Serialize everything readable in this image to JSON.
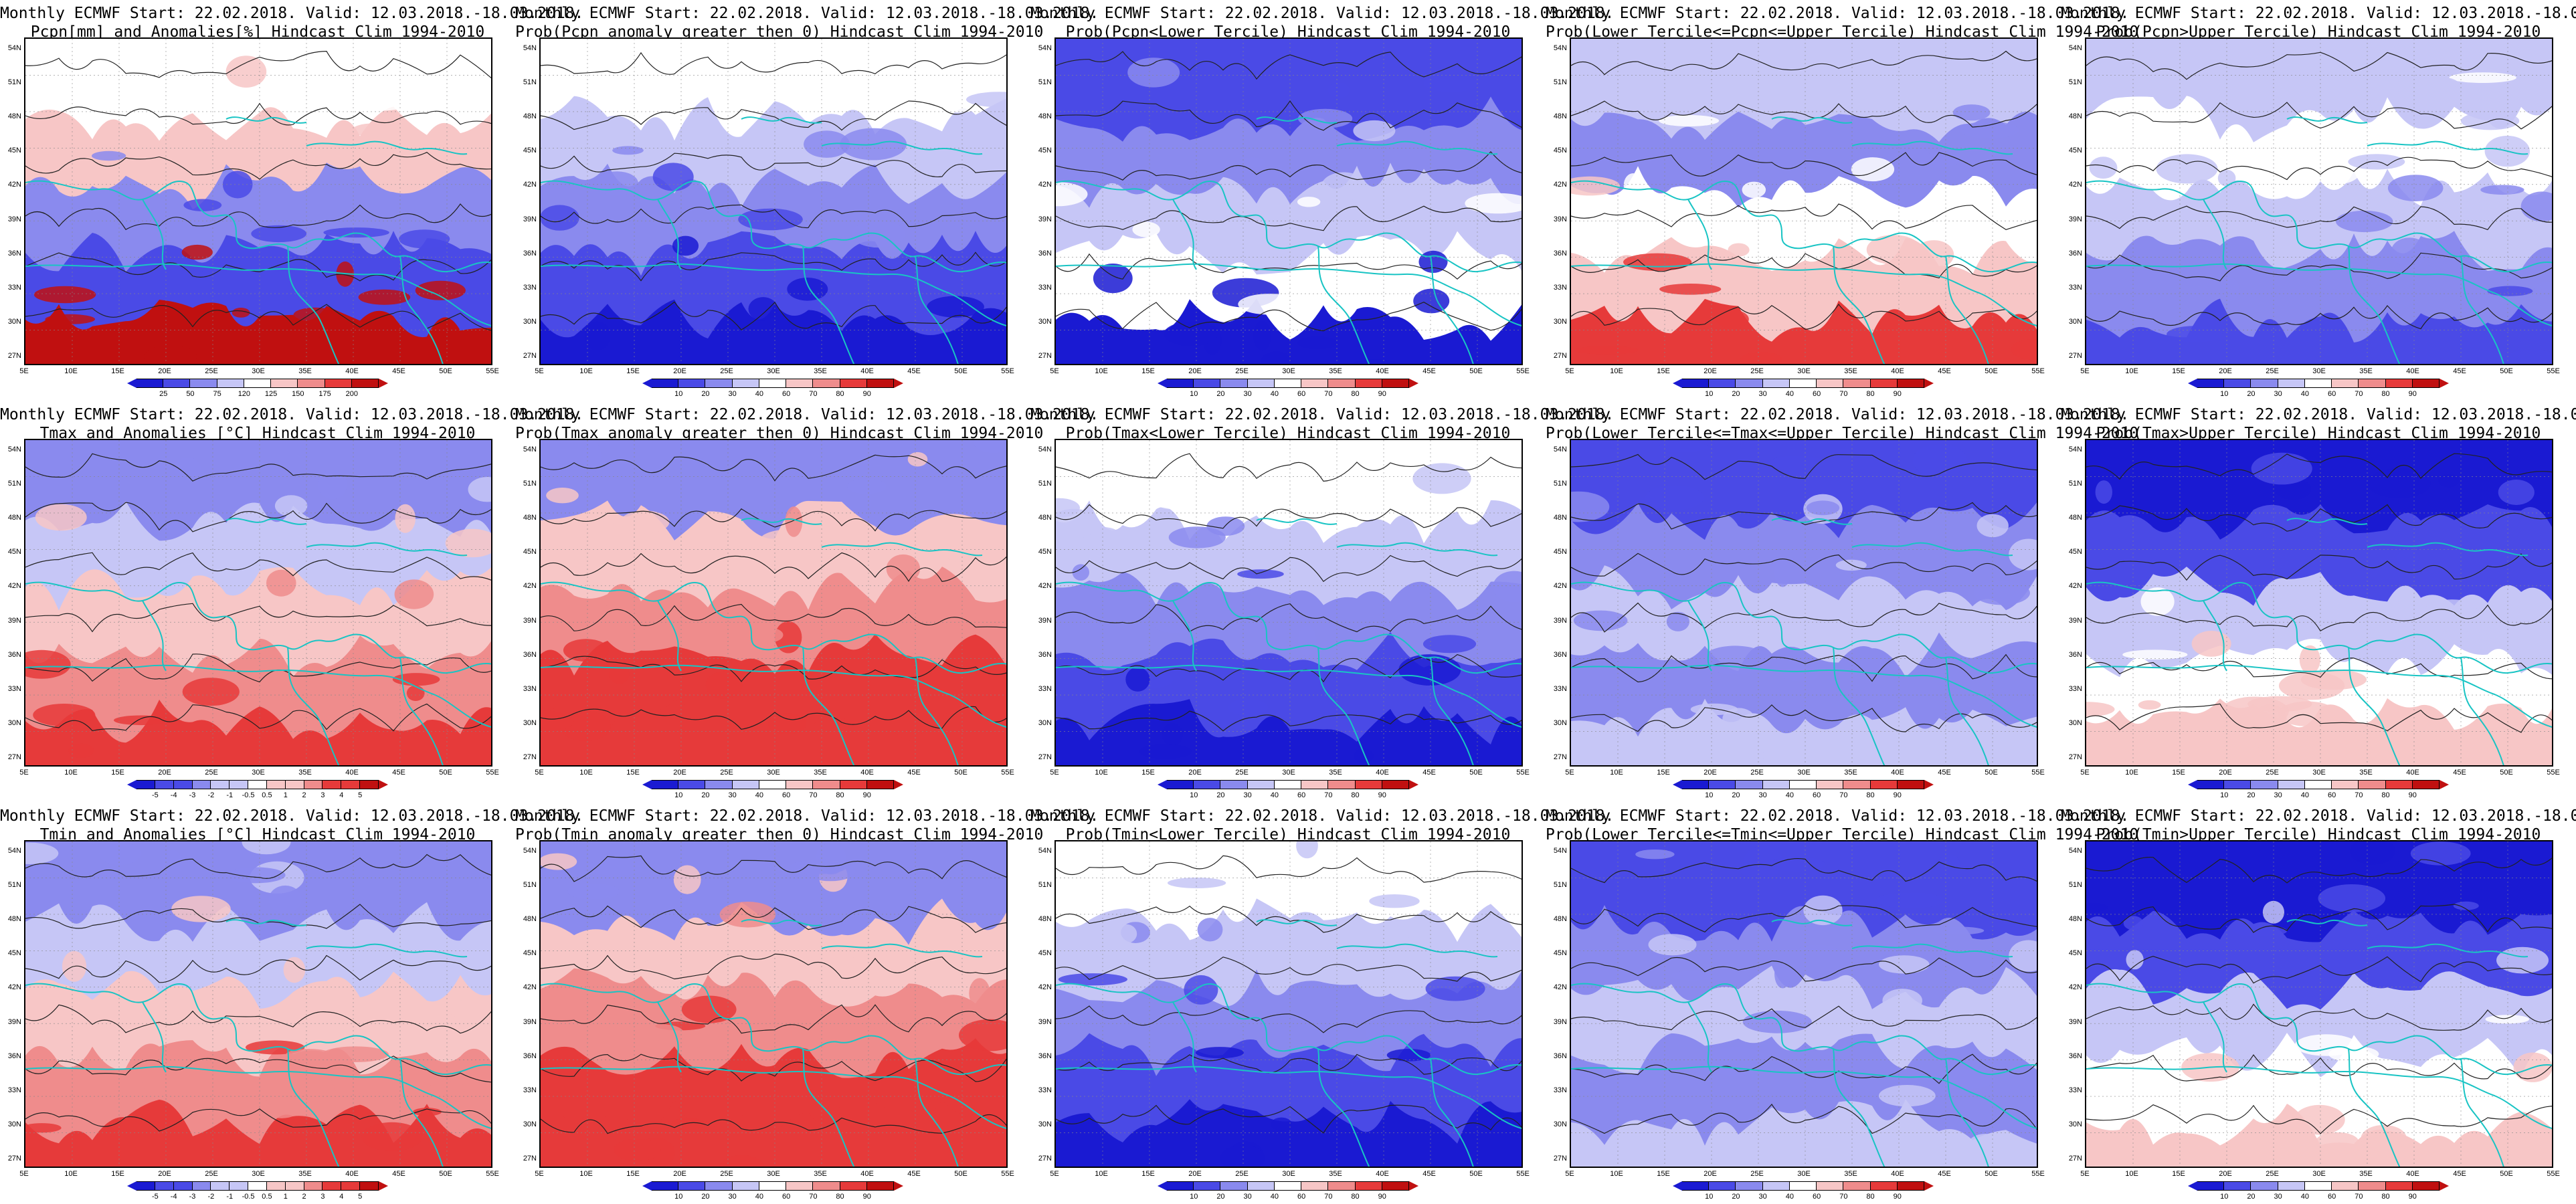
{
  "figure": {
    "title_line1": "Monthly ECMWF Start: 22.02.2018. Valid: 12.03.2018.-18.03.2018.",
    "lat_labels": [
      "54N",
      "51N",
      "48N",
      "45N",
      "42N",
      "39N",
      "36N",
      "33N",
      "30N",
      "27N"
    ],
    "lon_labels": [
      "5E",
      "10E",
      "15E",
      "20E",
      "25E",
      "30E",
      "35E",
      "40E",
      "45E",
      "50E",
      "55E"
    ],
    "colors": {
      "coastline": "#19c4c4",
      "contour": "#222222",
      "deep_blue": "#1a1ad2",
      "blue": "#4a4ae6",
      "mid_blue": "#8a8aee",
      "light_blue": "#c6c6f6",
      "white": "#ffffff",
      "light_red": "#f7c6c6",
      "mid_red": "#ef8c8c",
      "red": "#e63a3a",
      "deep_red": "#c01010"
    }
  },
  "rows": [
    {
      "variable": "Pcpn",
      "panels": [
        {
          "title_line2": "Pcpn[mm] and Anomalies[%] Hindcast Clim 1994-2010",
          "colorbar": "anom_pcpn"
        },
        {
          "title_line2": "Prob(Pcpn anomaly greater then 0) Hindcast Clim 1994-2010",
          "colorbar": "prob"
        },
        {
          "title_line2": "Prob(Pcpn<Lower Tercile) Hindcast Clim 1994-2010",
          "colorbar": "prob"
        },
        {
          "title_line2": "Prob(Lower Tercile<=Pcpn<=Upper Tercile) Hindcast Clim 1994-2010",
          "colorbar": "prob"
        },
        {
          "title_line2": "Prob(Pcpn>Upper Tercile) Hindcast Clim 1994-2010",
          "colorbar": "prob"
        }
      ]
    },
    {
      "variable": "Tmax",
      "panels": [
        {
          "title_line2": "Tmax and Anomalies [°C] Hindcast Clim 1994-2010",
          "colorbar": "anom_temp"
        },
        {
          "title_line2": "Prob(Tmax anomaly greater then 0) Hindcast Clim 1994-2010",
          "colorbar": "prob"
        },
        {
          "title_line2": "Prob(Tmax<Lower Tercile) Hindcast Clim 1994-2010",
          "colorbar": "prob"
        },
        {
          "title_line2": "Prob(Lower Tercile<=Tmax<=Upper Tercile) Hindcast Clim 1994-2010",
          "colorbar": "prob"
        },
        {
          "title_line2": "Prob(Tmax>Upper Tercile) Hindcast Clim 1994-2010",
          "colorbar": "prob"
        }
      ]
    },
    {
      "variable": "Tmin",
      "panels": [
        {
          "title_line2": "Tmin and Anomalies [°C] Hindcast Clim 1994-2010",
          "colorbar": "anom_temp"
        },
        {
          "title_line2": "Prob(Tmin anomaly greater then 0) Hindcast Clim 1994-2010",
          "colorbar": "prob"
        },
        {
          "title_line2": "Prob(Tmin<Lower Tercile) Hindcast Clim 1994-2010",
          "colorbar": "prob"
        },
        {
          "title_line2": "Prob(Lower Tercile<=Tmin<=Upper Tercile) Hindcast Clim 1994-2010",
          "colorbar": "prob"
        },
        {
          "title_line2": "Prob(Tmin>Upper Tercile) Hindcast Clim 1994-2010",
          "colorbar": "prob"
        }
      ]
    }
  ],
  "colorbars": {
    "anom_pcpn": {
      "labels": [
        "25",
        "50",
        "75",
        "120",
        "125",
        "150",
        "175",
        "200"
      ],
      "arrows": true
    },
    "anom_temp": {
      "labels": [
        "-5",
        "-4",
        "-3",
        "-2",
        "-1",
        "-0.5",
        "0.5",
        "1",
        "2",
        "3",
        "4",
        "5"
      ],
      "arrows": true
    },
    "prob": {
      "labels": [
        "10",
        "20",
        "30",
        "40",
        "60",
        "70",
        "80",
        "90"
      ],
      "arrows": true
    }
  },
  "field_patterns": [
    "anom_pcpn",
    "prob_pcpn_gt0",
    "prob_pcpn_lower",
    "prob_pcpn_middle",
    "prob_pcpn_upper",
    "warm",
    "warm_strong",
    "cold_prob",
    "middle_prob",
    "upper_prob",
    "warm",
    "warm_strong",
    "cold_prob",
    "middle_prob",
    "upper_prob"
  ]
}
